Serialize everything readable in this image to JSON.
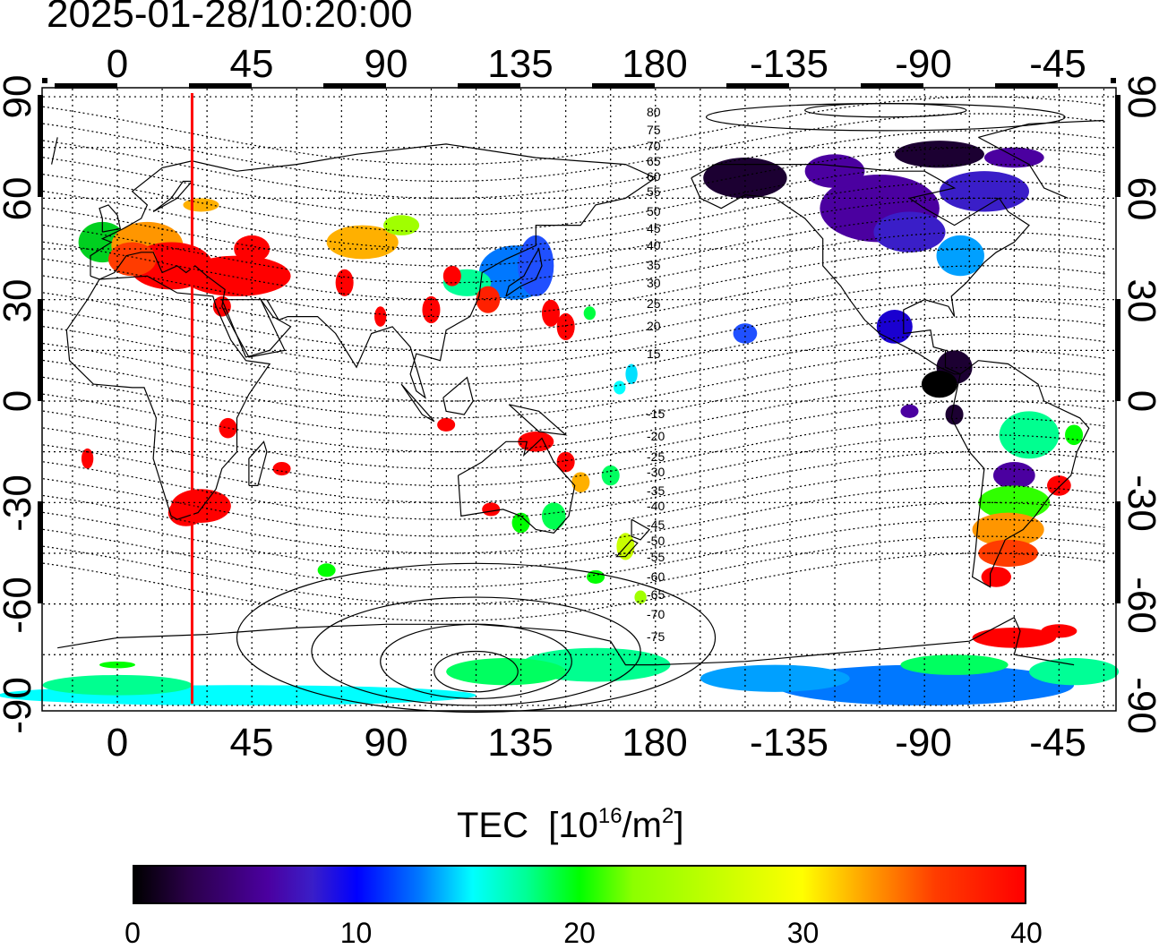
{
  "timestamp": "2025-01-28/10:20:00",
  "map": {
    "lon_ticks": [
      "0",
      "45",
      "90",
      "135",
      "180",
      "-135",
      "-90",
      "-45"
    ],
    "lat_ticks": [
      "90",
      "60",
      "30",
      "0",
      "-30",
      "-60",
      "-90"
    ],
    "contour_labels": [
      "80",
      "75",
      "70",
      "65",
      "60",
      "55",
      "50",
      "45",
      "40",
      "35",
      "30",
      "25",
      "20",
      "15",
      "-15",
      "-20",
      "-25",
      "-30",
      "-35",
      "-40",
      "-45",
      "-50",
      "-55",
      "-60",
      "-65",
      "-70",
      "-75"
    ],
    "marker_longitude": 25
  },
  "colorbar": {
    "label": "TEC",
    "unit_prefix": "[10",
    "unit_exp1": "16",
    "unit_mid": "/m",
    "unit_exp2": "2",
    "unit_suffix": "]",
    "ticks": [
      "0",
      "10",
      "20",
      "30",
      "40"
    ],
    "min": 0,
    "max": 40
  }
}
